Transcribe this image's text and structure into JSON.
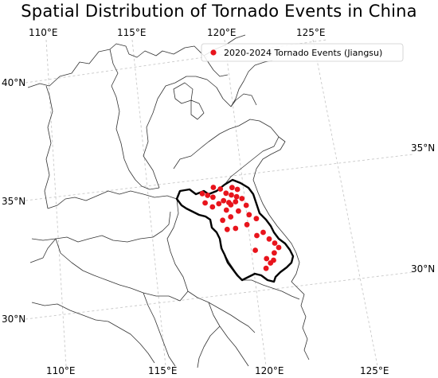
{
  "title": "Spatial Distribution of Tornado Events in China",
  "ticks": {
    "top": [
      "110°E",
      "115°E",
      "120°E",
      "125°E"
    ],
    "bottom": [
      "110°E",
      "115°E",
      "120°E",
      "125°E"
    ],
    "left": [
      "40°N",
      "35°N",
      "30°N"
    ],
    "right": [
      "35°N",
      "30°N"
    ]
  },
  "legend": {
    "label": "2020-2024 Tornado Events (Jiangsu)",
    "marker_color": "#e8141c",
    "placement": "top-right"
  },
  "colors": {
    "province_outline": "#333333",
    "highlight_outline": "#000000",
    "graticule": "#c8c8c8",
    "event_marker": "#e8141c"
  },
  "events": [
    {
      "lon": 116.9,
      "lat": 34.5
    },
    {
      "lon": 117.2,
      "lat": 34.4
    },
    {
      "lon": 117.0,
      "lat": 34.1
    },
    {
      "lon": 117.5,
      "lat": 34.3
    },
    {
      "lon": 117.4,
      "lat": 33.9
    },
    {
      "lon": 117.8,
      "lat": 34.0
    },
    {
      "lon": 118.3,
      "lat": 34.4
    },
    {
      "lon": 118.6,
      "lat": 34.3
    },
    {
      "lon": 118.9,
      "lat": 34.2
    },
    {
      "lon": 118.8,
      "lat": 34.0
    },
    {
      "lon": 118.5,
      "lat": 33.9
    },
    {
      "lon": 118.2,
      "lat": 33.7
    },
    {
      "lon": 118.4,
      "lat": 33.4
    },
    {
      "lon": 118.9,
      "lat": 33.6
    },
    {
      "lon": 119.4,
      "lat": 33.8
    },
    {
      "lon": 119.5,
      "lat": 33.4
    },
    {
      "lon": 119.9,
      "lat": 33.2
    },
    {
      "lon": 117.9,
      "lat": 33.3
    },
    {
      "lon": 118.1,
      "lat": 32.9
    },
    {
      "lon": 118.6,
      "lat": 32.9
    },
    {
      "lon": 119.3,
      "lat": 33.0
    },
    {
      "lon": 119.8,
      "lat": 32.5
    },
    {
      "lon": 120.2,
      "lat": 32.6
    },
    {
      "lon": 120.5,
      "lat": 32.3
    },
    {
      "lon": 120.8,
      "lat": 32.1
    },
    {
      "lon": 121.0,
      "lat": 31.9
    },
    {
      "lon": 120.7,
      "lat": 31.7
    },
    {
      "lon": 119.6,
      "lat": 31.9
    },
    {
      "lon": 120.2,
      "lat": 31.5
    },
    {
      "lon": 120.4,
      "lat": 31.3
    },
    {
      "lon": 120.6,
      "lat": 31.4
    },
    {
      "lon": 120.1,
      "lat": 31.1
    },
    {
      "lon": 117.6,
      "lat": 34.7
    },
    {
      "lon": 118.0,
      "lat": 34.6
    },
    {
      "lon": 118.7,
      "lat": 34.6
    },
    {
      "lon": 119.0,
      "lat": 34.5
    },
    {
      "lon": 118.1,
      "lat": 34.1
    },
    {
      "lon": 118.4,
      "lat": 34.0
    },
    {
      "lon": 119.2,
      "lat": 34.1
    }
  ]
}
